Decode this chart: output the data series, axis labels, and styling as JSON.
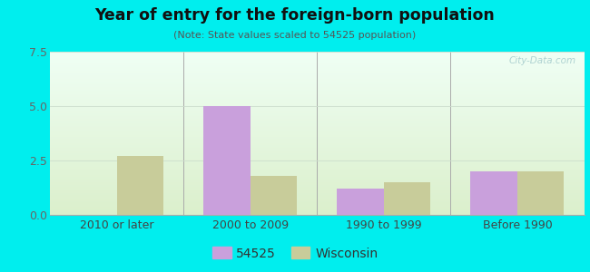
{
  "title": "Year of entry for the foreign-born population",
  "subtitle": "(Note: State values scaled to 54525 population)",
  "categories": [
    "2010 or later",
    "2000 to 2009",
    "1990 to 1999",
    "Before 1990"
  ],
  "values_54525": [
    0,
    5.0,
    1.2,
    2.0
  ],
  "values_wisconsin": [
    2.7,
    1.8,
    1.5,
    2.0
  ],
  "color_54525": "#c9a0dc",
  "color_wisconsin": "#c8cc9a",
  "ylim": [
    0,
    7.5
  ],
  "yticks": [
    0,
    2.5,
    5,
    7.5
  ],
  "bar_width": 0.35,
  "background_outer": "#00eeee",
  "legend_label_54525": "54525",
  "legend_label_wisconsin": "Wisconsin",
  "watermark": "City-Data.com"
}
